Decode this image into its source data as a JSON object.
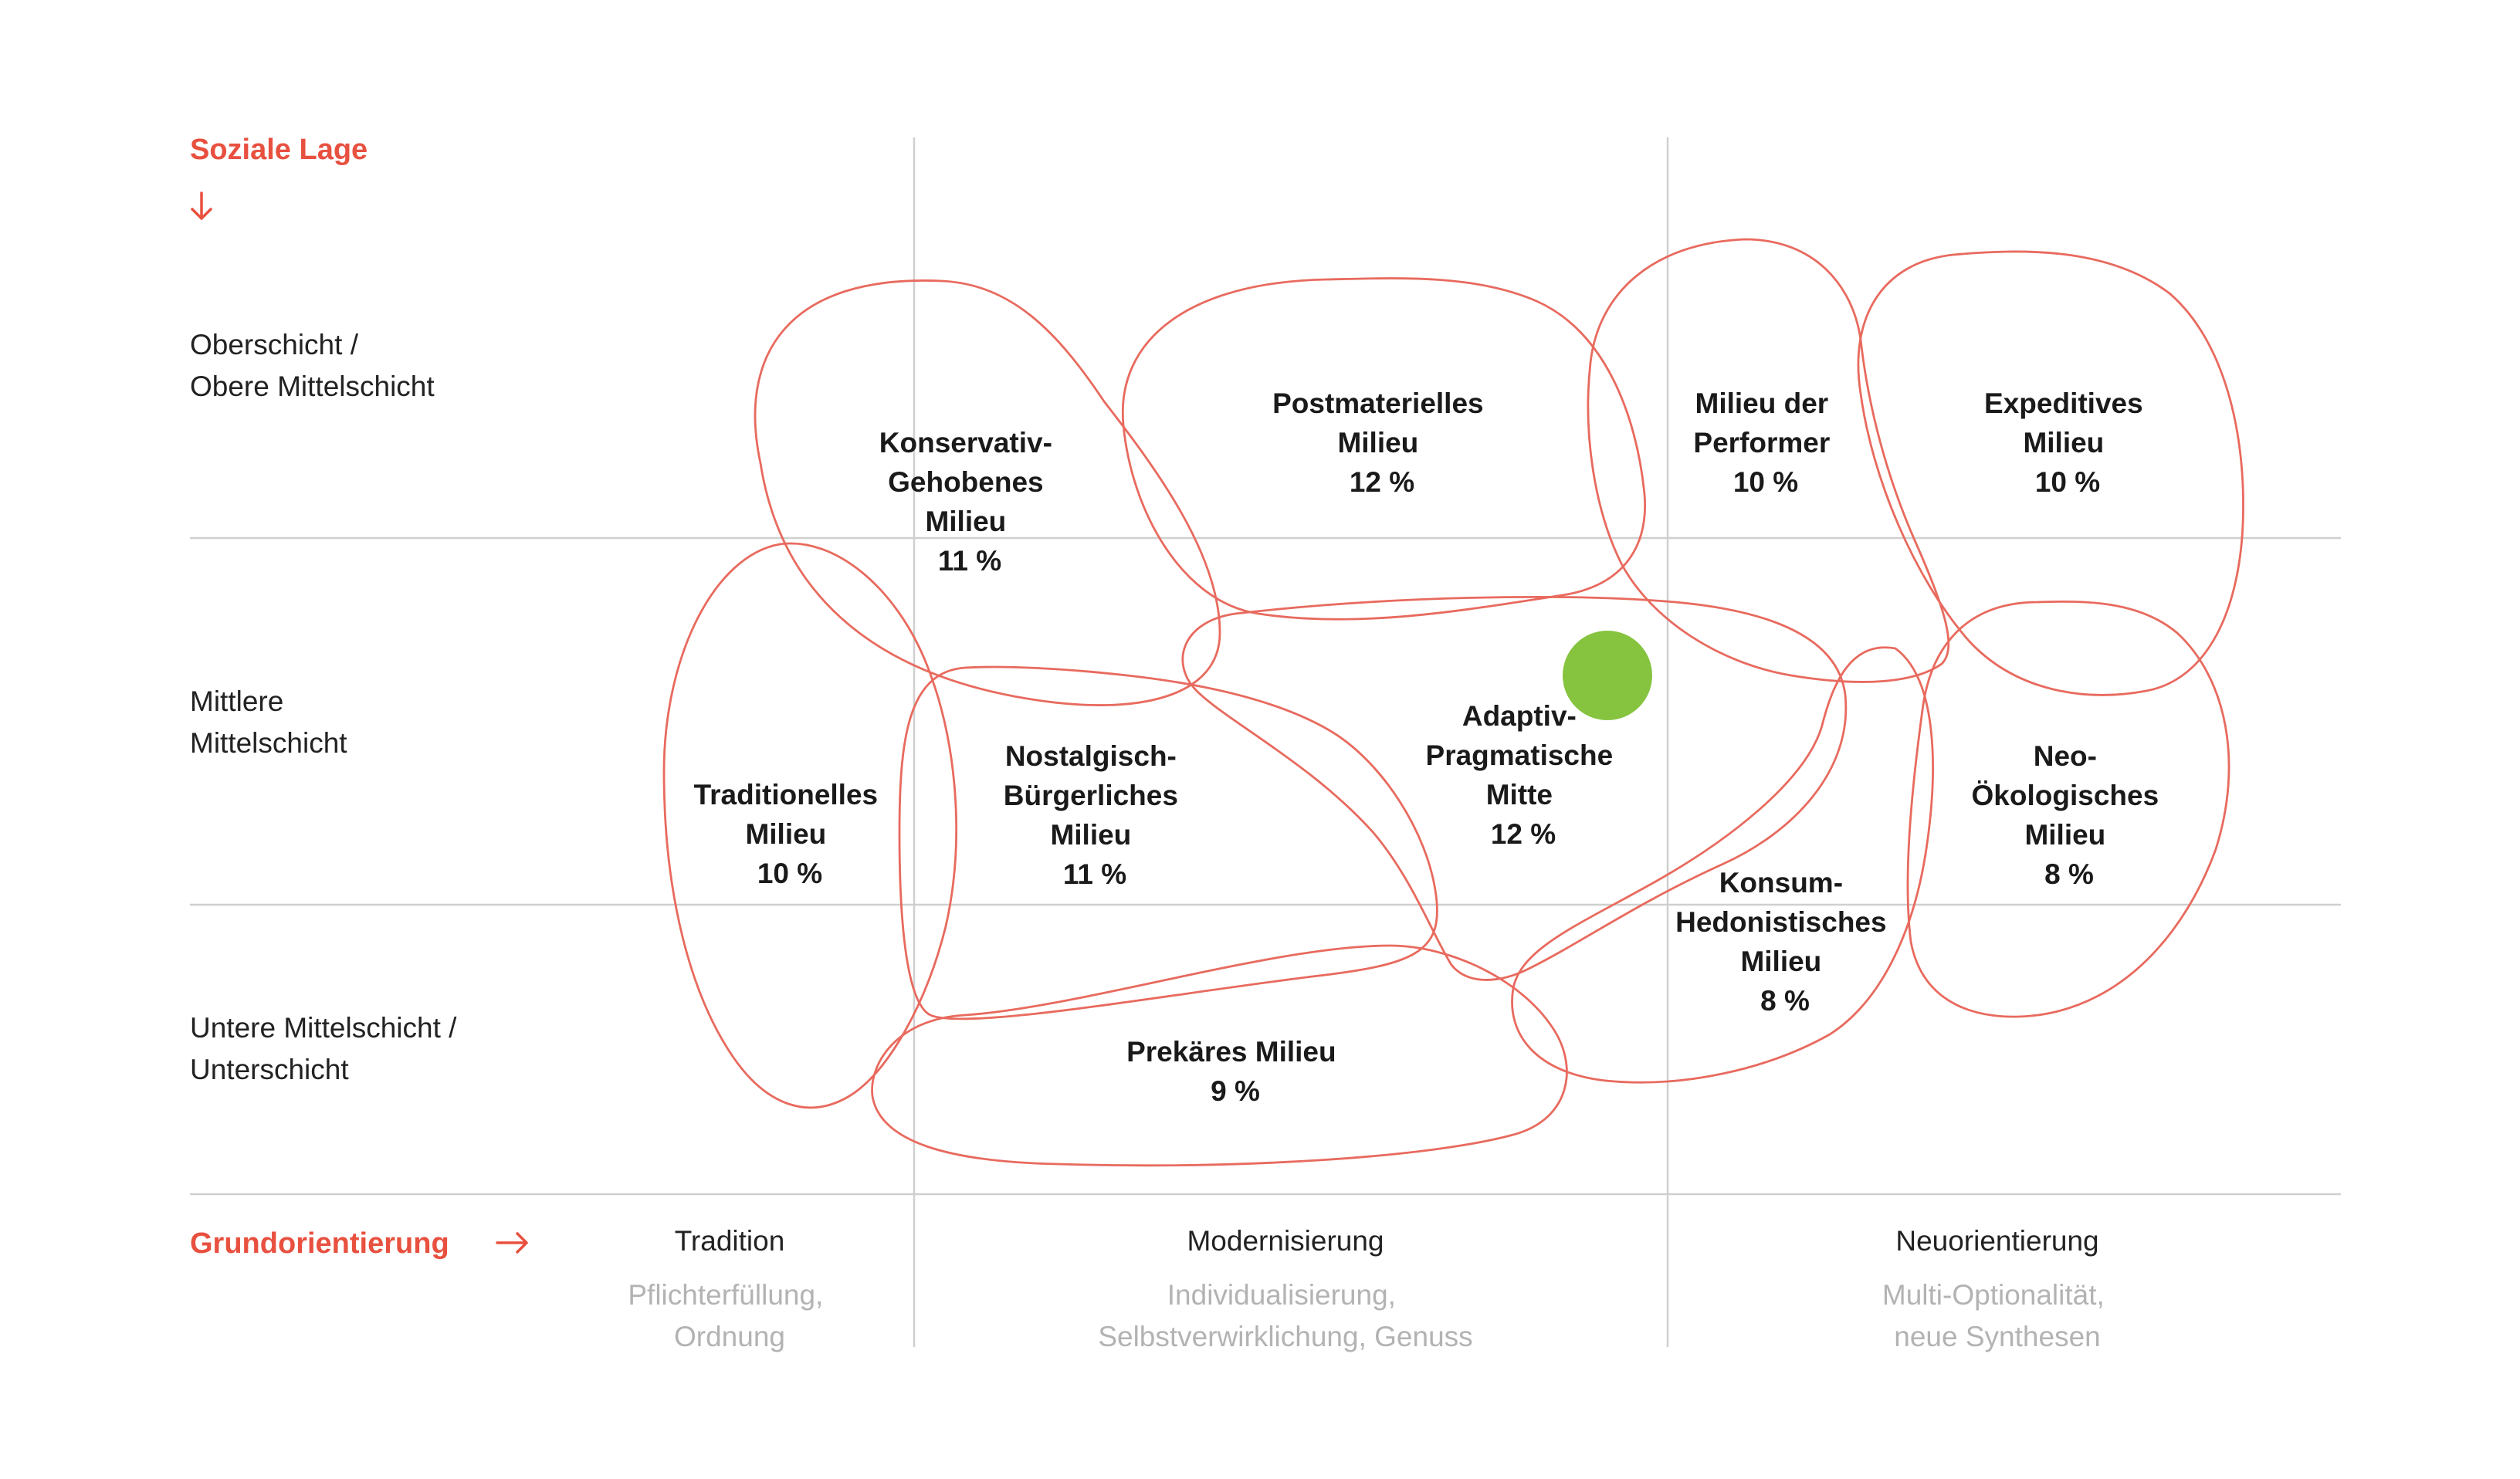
{
  "colors": {
    "accent": "#e8503f",
    "outline": "#e86a5e",
    "marker": "#86c440",
    "grid": "#cfcfcf",
    "text": "#1a1a1a",
    "subtext": "#b3b3b3"
  },
  "axis": {
    "vertical_title": "Soziale Lage",
    "horizontal_title": "Grundorientierung"
  },
  "rows": [
    {
      "lines": [
        "Oberschicht /",
        "Obere Mittelschicht"
      ]
    },
    {
      "lines": [
        "Mittlere",
        "Mittelschicht"
      ]
    },
    {
      "lines": [
        "Untere Mittelschicht /",
        "Unterschicht"
      ]
    }
  ],
  "columns": [
    {
      "title": "Tradition",
      "sub": [
        "Pflichterfüllung,",
        "Ordnung"
      ]
    },
    {
      "title": "Modernisierung",
      "sub": [
        "Individualisierung,",
        "Selbstverwirklichung, Genuss"
      ]
    },
    {
      "title": "Neuorientierung",
      "sub": [
        "Multi-Optionalität,",
        "neue Synthesen"
      ]
    }
  ],
  "milieus": [
    {
      "id": "konservativ-gehobenes",
      "lines": [
        "Konservativ-",
        "Gehobenes",
        "Milieu"
      ],
      "share": "11 %"
    },
    {
      "id": "postmaterielles",
      "lines": [
        "Postmaterielles",
        "Milieu"
      ],
      "share": "12 %"
    },
    {
      "id": "performer",
      "lines": [
        "Milieu der",
        "Performer"
      ],
      "share": "10 %"
    },
    {
      "id": "expeditives",
      "lines": [
        "Expeditives",
        "Milieu"
      ],
      "share": "10 %"
    },
    {
      "id": "traditionelles",
      "lines": [
        "Traditionelles",
        "Milieu"
      ],
      "share": "10 %"
    },
    {
      "id": "nostalgisch-buergerliches",
      "lines": [
        "Nostalgisch-",
        "Bürgerliches",
        "Milieu"
      ],
      "share": "11 %"
    },
    {
      "id": "adaptiv-pragmatische",
      "lines": [
        "Adaptiv-",
        "Pragmatische",
        "Mitte"
      ],
      "share": "12 %"
    },
    {
      "id": "neo-oekologisches",
      "lines": [
        "Neo-",
        "Ökologisches",
        "Milieu"
      ],
      "share": "8 %"
    },
    {
      "id": "konsum-hedonistisches",
      "lines": [
        "Konsum-",
        "Hedonistisches",
        "Milieu"
      ],
      "share": "8 %"
    },
    {
      "id": "prekaeres",
      "lines": [
        "Prekäres Milieu"
      ],
      "share": "9 %"
    }
  ]
}
